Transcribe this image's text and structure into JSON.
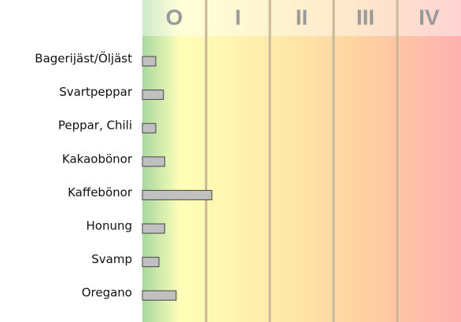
{
  "chart_data": {
    "type": "bar",
    "orientation": "horizontal",
    "categories": [
      "Bagerijäst/Öljäst",
      "Svartpeppar",
      "Peppar, Chili",
      "Kakaobönor",
      "Kaffebönor",
      "Honung",
      "Svamp",
      "Oregano"
    ],
    "values": [
      0.21,
      0.33,
      0.21,
      0.35,
      1.09,
      0.35,
      0.26,
      0.53
    ],
    "color": "#c0c0c0",
    "xlim": [
      0,
      5
    ],
    "xticks": [
      {
        "value": 0,
        "label": "O"
      },
      {
        "value": 1,
        "label": "I"
      },
      {
        "value": 2,
        "label": "II"
      },
      {
        "value": 3,
        "label": "III"
      },
      {
        "value": 4,
        "label": "IV"
      }
    ],
    "grid": true
  }
}
